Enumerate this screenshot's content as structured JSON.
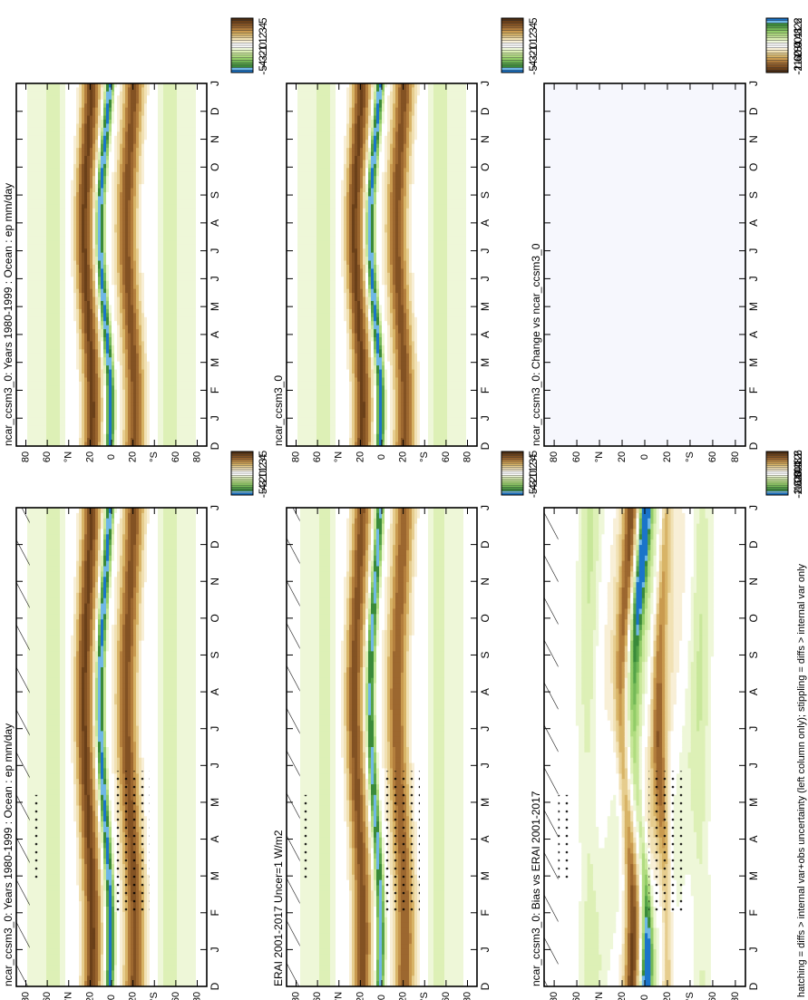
{
  "footer": {
    "note": "hatching = diffs > internal var+obs uncertainty (left column only); stippling = diffs > internal var only"
  },
  "axes": {
    "months": [
      "D",
      "J",
      "F",
      "M",
      "A",
      "M",
      "J",
      "J",
      "A",
      "S",
      "O",
      "N",
      "D",
      "J"
    ],
    "lat_ticks": [
      "80",
      "60",
      "°N",
      "20",
      "0",
      "20",
      "°S",
      "60",
      "80"
    ]
  },
  "colorbars": {
    "abs": {
      "labels": [
        "5",
        "4",
        "3",
        "2",
        "1",
        "0",
        "-1",
        "-2",
        "-3",
        "-4",
        "-5"
      ],
      "colors": [
        "#4f2e12",
        "#6b4019",
        "#835223",
        "#9c672f",
        "#b47f3d",
        "#c99a4f",
        "#d8b467",
        "#e6cd8e",
        "#f1e1b4",
        "#f8efd6",
        "#ffffff",
        "#ffffff",
        "#eef7d8",
        "#ddf0b6",
        "#c8e79a",
        "#b0dc80",
        "#92cc68",
        "#74b957",
        "#55a348",
        "#3a8a3a",
        "#6fb7e6",
        "#1a74c9"
      ]
    },
    "diff": {
      "labels": [
        "2",
        "1.6",
        "1.2",
        "0.8",
        "0.4",
        "0",
        "-0.4",
        "-0.8",
        "-1.2",
        "-1.6",
        "-2"
      ],
      "colors": [
        "#4f2e12",
        "#6b4019",
        "#835223",
        "#9c672f",
        "#b47f3d",
        "#c99a4f",
        "#d8b467",
        "#e6cd8e",
        "#f1e1b4",
        "#f8efd6",
        "#ffffff",
        "#ffffff",
        "#eef7d8",
        "#ddf0b6",
        "#c8e79a",
        "#b0dc80",
        "#92cc68",
        "#74b957",
        "#55a348",
        "#3a8a3a",
        "#6fb7e6",
        "#1a74c9"
      ]
    },
    "diff_rev": {
      "labels": [
        "2",
        "1.6",
        "1.2",
        "0.8",
        "0.4",
        "0",
        "-0.4",
        "-0.8",
        "-1.2",
        "-1.6",
        "-2"
      ],
      "colors": [
        "#1a74c9",
        "#6fb7e6",
        "#3a8a3a",
        "#55a348",
        "#74b957",
        "#92cc68",
        "#b0dc80",
        "#c8e79a",
        "#ddf0b6",
        "#eef7d8",
        "#ffffff",
        "#ffffff",
        "#f8efd6",
        "#f1e1b4",
        "#e6cd8e",
        "#d8b467",
        "#c99a4f",
        "#b47f3d",
        "#9c672f",
        "#835223",
        "#6b4019",
        "#4f2e12"
      ]
    }
  },
  "panels": {
    "p1": {
      "title": "ncar_ccsm3_0: Years 1980-1999 : Ocean : ep mm/day"
    },
    "p2": {
      "title": "ncar_ccsm3_0: Years 1980-1999 : Ocean : ep mm/day"
    },
    "p3": {
      "title": "ERAI 2001-2017 Uncer=1 W/m2"
    },
    "p4": {
      "title": "ncar_ccsm3_0"
    },
    "p5": {
      "title": "ncar_ccsm3_0: Bias vs ERAI 2001-2017"
    },
    "p6": {
      "title": "ncar_ccsm3_0: Change vs ncar_ccsm3_0"
    }
  },
  "chart_data": [
    {
      "type": "heatmap",
      "title": "ncar_ccsm3_0: Years 1980-1999 : Ocean : ep mm/day",
      "x_label": "",
      "y_label": "",
      "x_categories": [
        "D",
        "J",
        "F",
        "M",
        "A",
        "M",
        "J",
        "J",
        "A",
        "S",
        "O",
        "N",
        "D",
        "J"
      ],
      "y_ticks": [
        "80",
        "60",
        "°N",
        "20",
        "0",
        "20",
        "°S",
        "60",
        "80"
      ],
      "colorbar": [
        "5",
        "4",
        "3",
        "2",
        "1",
        "0",
        "-1",
        "-2",
        "-3",
        "-4",
        "-5"
      ],
      "hatching": true,
      "stippling": true
    },
    {
      "type": "heatmap",
      "title": "ncar_ccsm3_0: Years 1980-1999 : Ocean : ep mm/day",
      "x_categories": [
        "D",
        "J",
        "F",
        "M",
        "A",
        "M",
        "J",
        "J",
        "A",
        "S",
        "O",
        "N",
        "D",
        "J"
      ],
      "y_ticks": [
        "80",
        "60",
        "°N",
        "20",
        "0",
        "20",
        "°S",
        "60",
        "80"
      ],
      "colorbar": [
        "5",
        "4",
        "3",
        "2",
        "1",
        "0",
        "-1",
        "-2",
        "-3",
        "-4",
        "-5"
      ],
      "hatching": false,
      "stippling": false
    },
    {
      "type": "heatmap",
      "title": "ERAI 2001-2017 Uncer=1 W/m2",
      "x_categories": [
        "D",
        "J",
        "F",
        "M",
        "A",
        "M",
        "J",
        "J",
        "A",
        "S",
        "O",
        "N",
        "D",
        "J"
      ],
      "y_ticks": [
        "80",
        "60",
        "°N",
        "20",
        "0",
        "20",
        "°S",
        "60",
        "80"
      ],
      "colorbar": [
        "5",
        "4",
        "3",
        "2",
        "1",
        "0",
        "-1",
        "-2",
        "-3",
        "-4",
        "-5"
      ],
      "hatching": true,
      "stippling": true
    },
    {
      "type": "heatmap",
      "title": "ncar_ccsm3_0",
      "x_categories": [
        "D",
        "J",
        "F",
        "M",
        "A",
        "M",
        "J",
        "J",
        "A",
        "S",
        "O",
        "N",
        "D",
        "J"
      ],
      "y_ticks": [
        "80",
        "60",
        "°N",
        "20",
        "0",
        "20",
        "°S",
        "60",
        "80"
      ],
      "colorbar": [
        "5",
        "4",
        "3",
        "2",
        "1",
        "0",
        "-1",
        "-2",
        "-3",
        "-4",
        "-5"
      ],
      "hatching": false,
      "stippling": false
    },
    {
      "type": "heatmap",
      "title": "ncar_ccsm3_0: Bias vs ERAI 2001-2017",
      "x_categories": [
        "D",
        "J",
        "F",
        "M",
        "A",
        "M",
        "J",
        "J",
        "A",
        "S",
        "O",
        "N",
        "D",
        "J"
      ],
      "y_ticks": [
        "80",
        "60",
        "°N",
        "20",
        "0",
        "20",
        "°S",
        "60",
        "80"
      ],
      "colorbar": [
        "2",
        "1.6",
        "1.2",
        "0.8",
        "0.4",
        "0",
        "-0.4",
        "-0.8",
        "-1.2",
        "-1.6",
        "-2"
      ],
      "hatching": true,
      "stippling": true
    },
    {
      "type": "heatmap",
      "title": "ncar_ccsm3_0: Change vs ncar_ccsm3_0",
      "x_categories": [
        "D",
        "J",
        "F",
        "M",
        "A",
        "M",
        "J",
        "J",
        "A",
        "S",
        "O",
        "N",
        "D",
        "J"
      ],
      "y_ticks": [
        "80",
        "60",
        "°N",
        "20",
        "0",
        "20",
        "°S",
        "60",
        "80"
      ],
      "colorbar": [
        "2",
        "1.6",
        "1.2",
        "0.8",
        "0.4",
        "0",
        "-0.4",
        "-0.8",
        "-1.2",
        "-1.6",
        "-2"
      ],
      "hatching": false,
      "stippling": false
    }
  ]
}
